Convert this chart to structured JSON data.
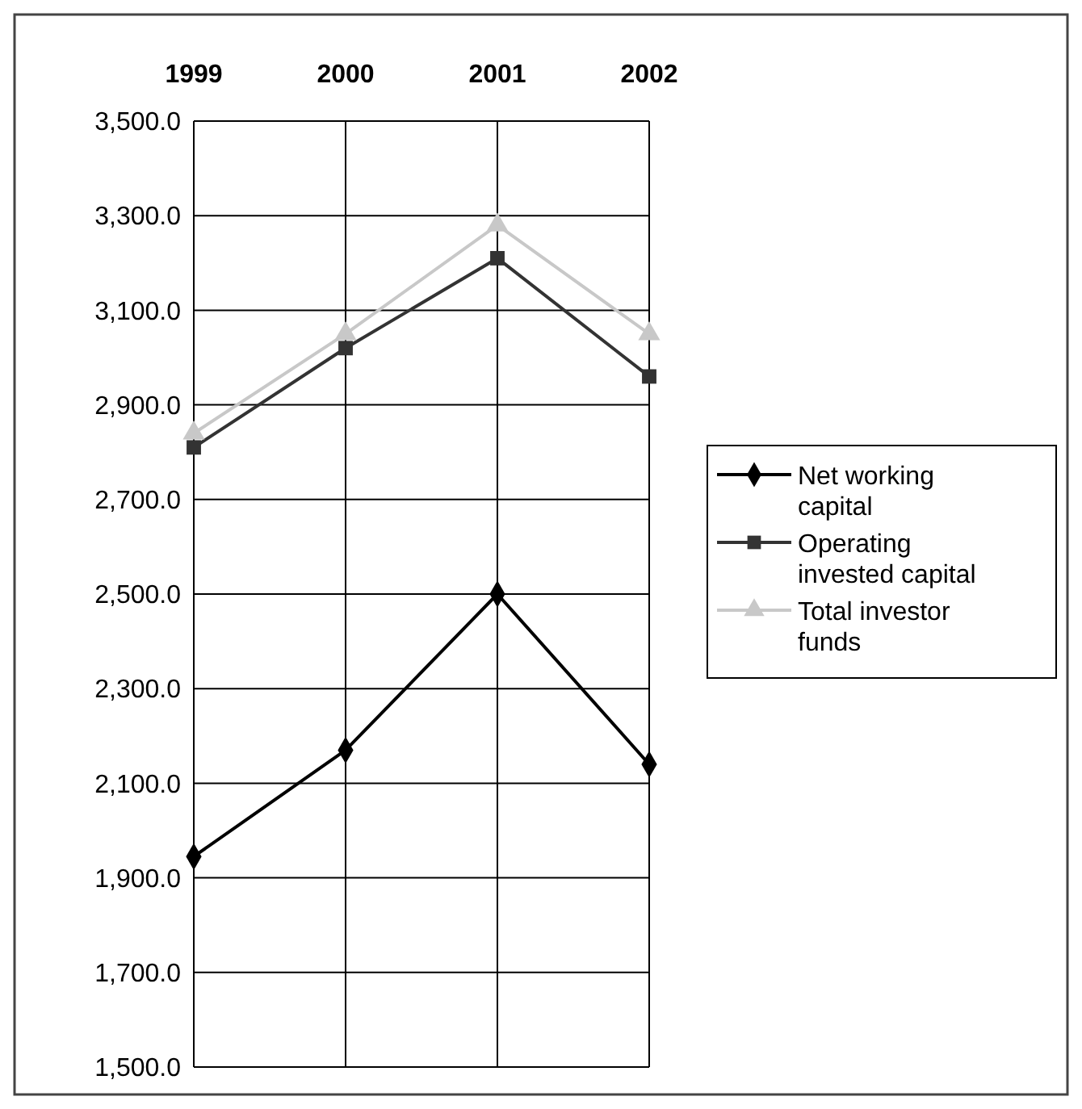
{
  "chart_data": {
    "type": "line",
    "categories": [
      "1999",
      "2000",
      "2001",
      "2002"
    ],
    "series": [
      {
        "name": "Net working capital",
        "color": "#000000",
        "marker": "diamond",
        "values": [
          1945,
          2170,
          2500,
          2140
        ]
      },
      {
        "name": "Operating invested capital",
        "color": "#333333",
        "marker": "square",
        "values": [
          2810,
          3020,
          3210,
          2960
        ]
      },
      {
        "name": "Total investor funds",
        "color": "#c8c8c8",
        "marker": "triangle",
        "values": [
          2840,
          3050,
          3280,
          3050
        ]
      }
    ],
    "ylim": [
      1500,
      3500
    ],
    "yticks": [
      {
        "value": 1500,
        "label": "1,500.0"
      },
      {
        "value": 1700,
        "label": "1,700.0"
      },
      {
        "value": 1900,
        "label": "1,900.0"
      },
      {
        "value": 2100,
        "label": "2,100.0"
      },
      {
        "value": 2300,
        "label": "2,300.0"
      },
      {
        "value": 2500,
        "label": "2,500.0"
      },
      {
        "value": 2700,
        "label": "2,700.0"
      },
      {
        "value": 2900,
        "label": "2,900.0"
      },
      {
        "value": 3100,
        "label": "3,100.0"
      },
      {
        "value": 3300,
        "label": "3,300.0"
      },
      {
        "value": 3500,
        "label": "3,500.0"
      }
    ],
    "grid": true,
    "legend": "right"
  }
}
